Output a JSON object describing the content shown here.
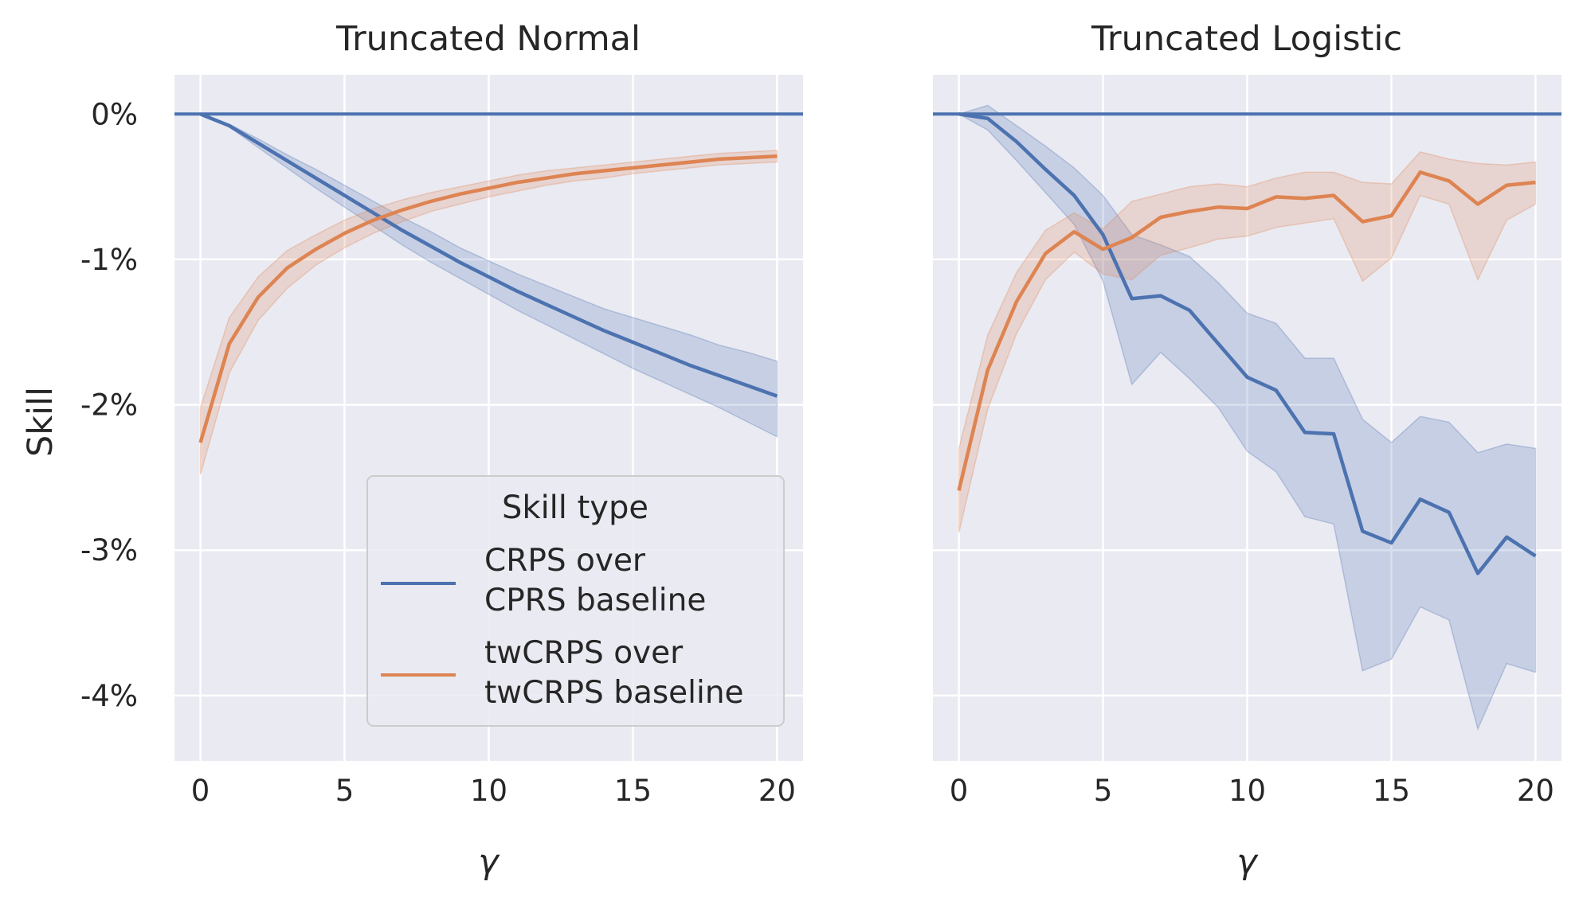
{
  "chart_data": {
    "type": "line",
    "ylabel": "Skill",
    "y_tick_labels": [
      "0%",
      "-1%",
      "-2%",
      "-3%",
      "-4%"
    ],
    "y_ticks": [
      0,
      -1,
      -2,
      -3,
      -4
    ],
    "ylim": [
      -4.45,
      0.27
    ],
    "x_ticks": [
      0,
      5,
      10,
      15,
      20
    ],
    "xlim": [
      -0.9,
      20.9
    ],
    "grid": true,
    "colors": {
      "crps": "#4c72b0",
      "twcrps": "#dd8452",
      "background": "#eaeaf2",
      "grid": "#ffffff"
    },
    "legend": {
      "title": "Skill type",
      "placement": "lower-right of left panel",
      "entries": [
        {
          "lines": [
            "CRPS over",
            "CPRS baseline"
          ],
          "series": "crps"
        },
        {
          "lines": [
            "twCRPS over",
            "twCRPS baseline"
          ],
          "series": "twcrps"
        }
      ]
    },
    "panels": [
      {
        "title": "Truncated Normal",
        "xlabel": "γ",
        "baseline": 0,
        "x": [
          0,
          1,
          2,
          3,
          4,
          5,
          6,
          7,
          8,
          9,
          10,
          11,
          12,
          13,
          14,
          15,
          16,
          17,
          18,
          19,
          20
        ],
        "series": [
          {
            "key": "crps",
            "values": [
              0,
              -0.08,
              -0.2,
              -0.32,
              -0.44,
              -0.56,
              -0.68,
              -0.8,
              -0.91,
              -1.02,
              -1.12,
              -1.22,
              -1.31,
              -1.4,
              -1.49,
              -1.57,
              -1.65,
              -1.73,
              -1.8,
              -1.87,
              -1.94
            ],
            "ci_low": [
              0,
              -0.09,
              -0.23,
              -0.37,
              -0.51,
              -0.64,
              -0.77,
              -0.9,
              -1.02,
              -1.13,
              -1.24,
              -1.35,
              -1.45,
              -1.55,
              -1.65,
              -1.75,
              -1.84,
              -1.93,
              -2.02,
              -2.12,
              -2.22
            ],
            "ci_high": [
              0,
              -0.07,
              -0.17,
              -0.28,
              -0.38,
              -0.49,
              -0.6,
              -0.71,
              -0.81,
              -0.92,
              -1.01,
              -1.1,
              -1.18,
              -1.26,
              -1.34,
              -1.4,
              -1.46,
              -1.52,
              -1.59,
              -1.64,
              -1.7
            ]
          },
          {
            "key": "twcrps",
            "values": [
              -2.26,
              -1.58,
              -1.26,
              -1.06,
              -0.93,
              -0.82,
              -0.73,
              -0.66,
              -0.6,
              -0.55,
              -0.51,
              -0.47,
              -0.44,
              -0.41,
              -0.39,
              -0.37,
              -0.35,
              -0.33,
              -0.31,
              -0.3,
              -0.29
            ],
            "ci_low": [
              -2.48,
              -1.78,
              -1.42,
              -1.2,
              -1.04,
              -0.92,
              -0.82,
              -0.74,
              -0.67,
              -0.62,
              -0.57,
              -0.53,
              -0.49,
              -0.46,
              -0.44,
              -0.41,
              -0.39,
              -0.37,
              -0.35,
              -0.34,
              -0.33
            ],
            "ci_high": [
              -2.02,
              -1.4,
              -1.12,
              -0.94,
              -0.83,
              -0.73,
              -0.65,
              -0.59,
              -0.54,
              -0.5,
              -0.46,
              -0.42,
              -0.39,
              -0.37,
              -0.35,
              -0.33,
              -0.31,
              -0.29,
              -0.27,
              -0.26,
              -0.25
            ]
          }
        ]
      },
      {
        "title": "Truncated Logistic",
        "xlabel": "γ",
        "baseline": 0,
        "x": [
          0,
          1,
          2,
          3,
          4,
          5,
          6,
          7,
          8,
          9,
          10,
          11,
          12,
          13,
          14,
          15,
          16,
          17,
          18,
          19,
          20
        ],
        "series": [
          {
            "key": "crps",
            "values": [
              0,
              -0.03,
              -0.19,
              -0.38,
              -0.56,
              -0.83,
              -1.27,
              -1.25,
              -1.35,
              -1.58,
              -1.81,
              -1.9,
              -2.19,
              -2.2,
              -2.87,
              -2.95,
              -2.65,
              -2.74,
              -3.16,
              -2.91,
              -3.04
            ],
            "ci_low": [
              0,
              -0.11,
              -0.32,
              -0.54,
              -0.76,
              -1.15,
              -1.86,
              -1.64,
              -1.82,
              -2.02,
              -2.32,
              -2.46,
              -2.77,
              -2.82,
              -3.83,
              -3.75,
              -3.39,
              -3.48,
              -4.23,
              -3.78,
              -3.84
            ],
            "ci_high": [
              0,
              0.06,
              -0.08,
              -0.22,
              -0.37,
              -0.56,
              -0.83,
              -0.9,
              -0.98,
              -1.16,
              -1.37,
              -1.44,
              -1.68,
              -1.68,
              -2.1,
              -2.26,
              -2.08,
              -2.12,
              -2.33,
              -2.27,
              -2.3
            ]
          },
          {
            "key": "twcrps",
            "values": [
              -2.59,
              -1.76,
              -1.29,
              -0.96,
              -0.81,
              -0.93,
              -0.85,
              -0.71,
              -0.67,
              -0.64,
              -0.65,
              -0.57,
              -0.58,
              -0.56,
              -0.74,
              -0.7,
              -0.4,
              -0.46,
              -0.62,
              -0.49,
              -0.47
            ],
            "ci_low": [
              -2.88,
              -2.03,
              -1.51,
              -1.14,
              -0.95,
              -1.1,
              -1.14,
              -0.97,
              -0.92,
              -0.86,
              -0.84,
              -0.78,
              -0.75,
              -0.72,
              -1.15,
              -0.99,
              -0.56,
              -0.62,
              -1.14,
              -0.73,
              -0.62
            ],
            "ci_high": [
              -2.3,
              -1.52,
              -1.09,
              -0.8,
              -0.68,
              -0.79,
              -0.6,
              -0.55,
              -0.5,
              -0.48,
              -0.5,
              -0.44,
              -0.4,
              -0.4,
              -0.47,
              -0.48,
              -0.26,
              -0.31,
              -0.34,
              -0.35,
              -0.33
            ]
          }
        ]
      }
    ]
  }
}
